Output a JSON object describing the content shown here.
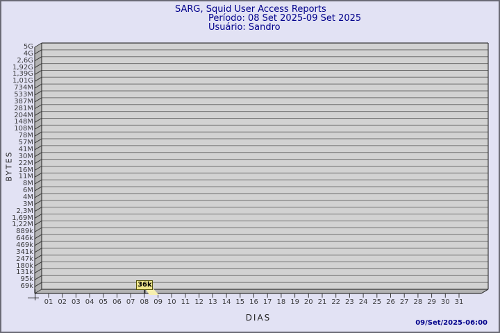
{
  "header": {
    "title": "SARG, Squid User Access Reports",
    "period": "Período: 08 Set 2025-09 Set 2025",
    "user": "Usuário: Sandro"
  },
  "footer": {
    "generated_at": "09/Set/2025-06:00"
  },
  "colors": {
    "background": "#e2e2f4",
    "border": "#6a6a75",
    "plot_background": "#d2d2d2",
    "wall": "#b2b2b2",
    "gridline": "#6f6f6f",
    "frame": "#3a3a3a",
    "title_text": "#00008b",
    "axis_text": "#3a3a3c",
    "tooltip_background": "#f0e68c",
    "tooltip_border": "#55530a",
    "tooltip_tail": "#f6efae",
    "timestamp_text": "#00008b"
  },
  "chart_data": {
    "type": "line",
    "title": "SARG, Squid User Access Reports",
    "subtitle": "Período: 08 Set 2025-09 Set 2025 / Usuário: Sandro",
    "xlabel": "DIAS",
    "ylabel": "BYTES",
    "y_scale": "log",
    "grid": "horizontal",
    "legend": "none",
    "x_tick_labels": [
      "01",
      "02",
      "03",
      "04",
      "05",
      "06",
      "07",
      "08",
      "09",
      "10",
      "11",
      "12",
      "13",
      "14",
      "15",
      "16",
      "17",
      "18",
      "19",
      "20",
      "21",
      "22",
      "23",
      "24",
      "25",
      "26",
      "27",
      "28",
      "29",
      "30",
      "31"
    ],
    "y_tick_labels": [
      "5G",
      "4G",
      "2,6G",
      "1,92G",
      "1,39G",
      "1,01G",
      "734M",
      "533M",
      "387M",
      "281M",
      "204M",
      "148M",
      "108M",
      "78M",
      "57M",
      "41M",
      "30M",
      "22M",
      "16M",
      "11M",
      "8M",
      "6M",
      "4M",
      "3M",
      "2,3M",
      "1,69M",
      "1,22M",
      "889k",
      "646k",
      "469k",
      "341k",
      "247k",
      "180k",
      "131k",
      "95k",
      "69k"
    ],
    "points": [
      {
        "day": "08",
        "bytes_label": "36k",
        "bytes_value": 36000
      }
    ],
    "tooltip": {
      "day": "08",
      "label": "36k"
    }
  }
}
